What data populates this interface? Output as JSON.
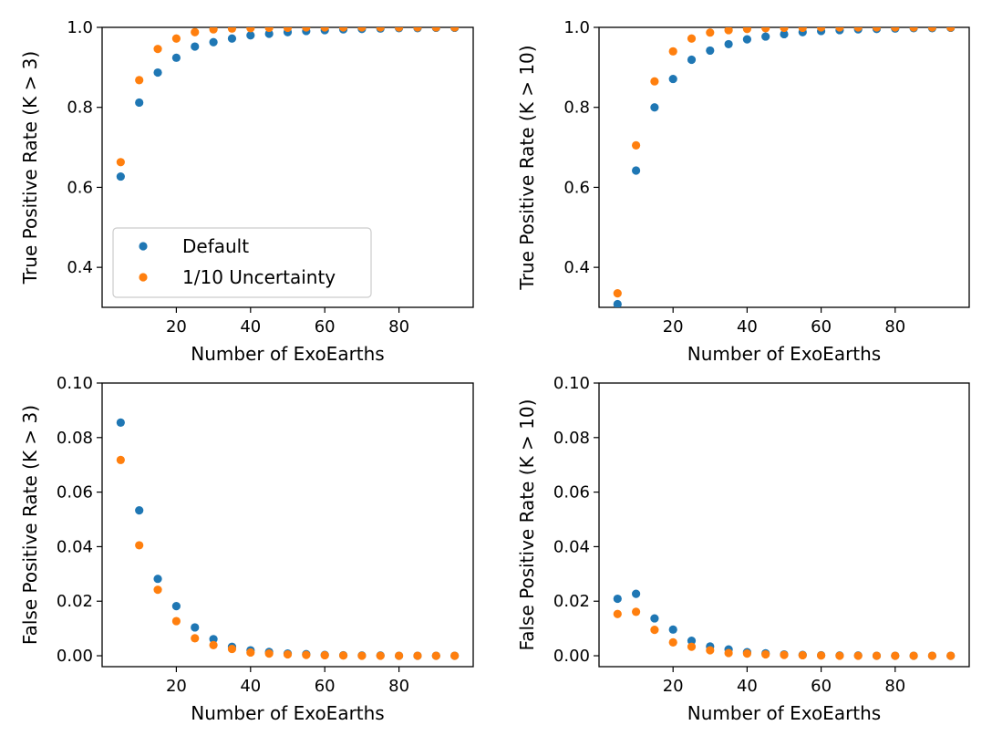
{
  "colors": {
    "default": "#1f77b4",
    "reduced": "#ff7f0e"
  },
  "legend": {
    "entries": [
      "Default",
      "1/10 Uncertainty"
    ],
    "location": "lower-left of top-left panel"
  },
  "chart_data": [
    {
      "type": "scatter",
      "panel": "top-left",
      "xlabel": "Number of ExoEarths",
      "ylabel": "True Positive Rate (K > 3)",
      "xlim": [
        0,
        100
      ],
      "ylim": [
        0.3,
        1.0
      ],
      "xticks": [
        20,
        40,
        60,
        80
      ],
      "yticks": [
        0.4,
        0.6,
        0.8,
        1.0
      ],
      "ytick_labels": [
        "0.4",
        "0.6",
        "0.8",
        "1.0"
      ],
      "x": [
        5,
        10,
        15,
        20,
        25,
        30,
        35,
        40,
        45,
        50,
        55,
        60,
        65,
        70,
        75,
        80,
        85,
        90,
        95
      ],
      "series": [
        {
          "name": "Default",
          "values": [
            0.627,
            0.812,
            0.887,
            0.924,
            0.952,
            0.963,
            0.972,
            0.98,
            0.984,
            0.988,
            0.991,
            0.993,
            0.995,
            0.996,
            0.997,
            0.998,
            0.998,
            0.999,
            0.999
          ]
        },
        {
          "name": "1/10 Uncertainty",
          "values": [
            0.663,
            0.868,
            0.946,
            0.972,
            0.988,
            0.995,
            0.997,
            0.998,
            0.999,
            0.999,
            1.0,
            1.0,
            1.0,
            1.0,
            1.0,
            1.0,
            1.0,
            1.0,
            1.0
          ]
        }
      ],
      "show_legend": true
    },
    {
      "type": "scatter",
      "panel": "top-right",
      "xlabel": "Number of ExoEarths",
      "ylabel": "True Positive Rate (K > 10)",
      "xlim": [
        0,
        100
      ],
      "ylim": [
        0.3,
        1.0
      ],
      "xticks": [
        20,
        40,
        60,
        80
      ],
      "yticks": [
        0.4,
        0.6,
        0.8,
        1.0
      ],
      "ytick_labels": [
        "0.4",
        "0.6",
        "0.8",
        "1.0"
      ],
      "x": [
        5,
        10,
        15,
        20,
        25,
        30,
        35,
        40,
        45,
        50,
        55,
        60,
        65,
        70,
        75,
        80,
        85,
        90,
        95
      ],
      "series": [
        {
          "name": "Default",
          "values": [
            0.308,
            0.642,
            0.8,
            0.871,
            0.919,
            0.942,
            0.958,
            0.97,
            0.977,
            0.983,
            0.988,
            0.991,
            0.993,
            0.995,
            0.996,
            0.997,
            0.998,
            0.998,
            0.999
          ]
        },
        {
          "name": "1/10 Uncertainty",
          "values": [
            0.335,
            0.705,
            0.865,
            0.94,
            0.972,
            0.987,
            0.993,
            0.996,
            0.998,
            0.999,
            0.999,
            1.0,
            1.0,
            1.0,
            1.0,
            1.0,
            1.0,
            1.0,
            1.0
          ]
        }
      ],
      "show_legend": false
    },
    {
      "type": "scatter",
      "panel": "bottom-left",
      "xlabel": "Number of ExoEarths",
      "ylabel": "False Positive Rate (K > 3)",
      "xlim": [
        0,
        100
      ],
      "ylim": [
        -0.004,
        0.1
      ],
      "xticks": [
        20,
        40,
        60,
        80
      ],
      "yticks": [
        0.0,
        0.02,
        0.04,
        0.06,
        0.08,
        0.1
      ],
      "ytick_labels": [
        "0.00",
        "0.02",
        "0.04",
        "0.06",
        "0.08",
        "0.10"
      ],
      "x": [
        5,
        10,
        15,
        20,
        25,
        30,
        35,
        40,
        45,
        50,
        55,
        60,
        65,
        70,
        75,
        80,
        85,
        90,
        95
      ],
      "series": [
        {
          "name": "Default",
          "values": [
            0.0855,
            0.0533,
            0.0282,
            0.0182,
            0.0104,
            0.0061,
            0.0033,
            0.002,
            0.0014,
            0.0008,
            0.0006,
            0.0003,
            0.0002,
            0.0001,
            0.0001,
            0.0,
            0.0,
            0.0,
            0.0
          ]
        },
        {
          "name": "1/10 Uncertainty",
          "values": [
            0.0718,
            0.0405,
            0.0242,
            0.0127,
            0.0064,
            0.0039,
            0.0025,
            0.0012,
            0.0008,
            0.0005,
            0.0003,
            0.0002,
            0.0001,
            0.0,
            0.0,
            0.0,
            0.0,
            0.0,
            0.0
          ]
        }
      ],
      "show_legend": false
    },
    {
      "type": "scatter",
      "panel": "bottom-right",
      "xlabel": "Number of ExoEarths",
      "ylabel": "False Positive Rate (K > 10)",
      "xlim": [
        0,
        100
      ],
      "ylim": [
        -0.004,
        0.1
      ],
      "xticks": [
        20,
        40,
        60,
        80
      ],
      "yticks": [
        0.0,
        0.02,
        0.04,
        0.06,
        0.08,
        0.1
      ],
      "ytick_labels": [
        "0.00",
        "0.02",
        "0.04",
        "0.06",
        "0.08",
        "0.10"
      ],
      "x": [
        5,
        10,
        15,
        20,
        25,
        30,
        35,
        40,
        45,
        50,
        55,
        60,
        65,
        70,
        75,
        80,
        85,
        90,
        95
      ],
      "series": [
        {
          "name": "Default",
          "values": [
            0.0209,
            0.0227,
            0.0137,
            0.0096,
            0.0055,
            0.0034,
            0.0023,
            0.0013,
            0.0009,
            0.0005,
            0.0003,
            0.0002,
            0.0001,
            0.0001,
            0.0,
            0.0,
            0.0,
            0.0,
            0.0
          ]
        },
        {
          "name": "1/10 Uncertainty",
          "values": [
            0.0153,
            0.0161,
            0.0095,
            0.0049,
            0.0033,
            0.002,
            0.001,
            0.0008,
            0.0005,
            0.0003,
            0.0002,
            0.0001,
            0.0,
            0.0,
            0.0,
            0.0,
            0.0,
            0.0,
            0.0
          ]
        }
      ],
      "show_legend": false
    }
  ]
}
